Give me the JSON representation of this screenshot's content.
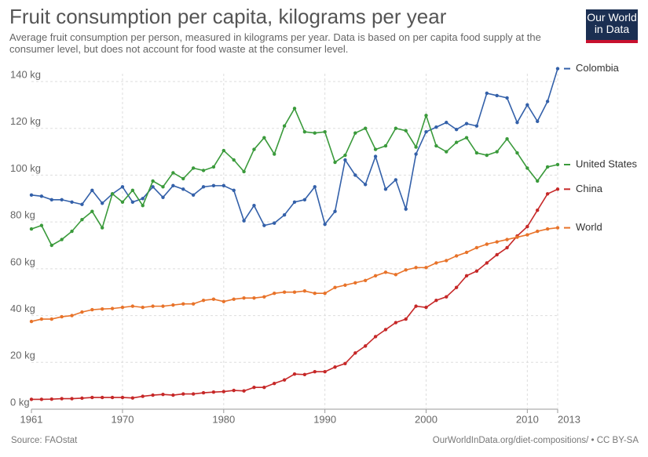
{
  "logo": "Our World in Data",
  "chart_data": {
    "type": "line",
    "title": "Fruit consumption per capita, kilograms per year",
    "subtitle": "Average fruit consumption per person, measured in kilograms per year. Data is based on per capita food supply at the consumer level, but does not account for food waste at the consumer level.",
    "source": "Source: FAOstat",
    "credit": "OurWorldInData.org/diet-compositions/ • CC BY-SA",
    "x": [
      1961,
      1962,
      1963,
      1964,
      1965,
      1966,
      1967,
      1968,
      1969,
      1970,
      1971,
      1972,
      1973,
      1974,
      1975,
      1976,
      1977,
      1978,
      1979,
      1980,
      1981,
      1982,
      1983,
      1984,
      1985,
      1986,
      1987,
      1988,
      1989,
      1990,
      1991,
      1992,
      1993,
      1994,
      1995,
      1996,
      1997,
      1998,
      1999,
      2000,
      2001,
      2002,
      2003,
      2004,
      2005,
      2006,
      2007,
      2008,
      2009,
      2010,
      2011,
      2012,
      2013
    ],
    "xlim": [
      1961,
      2013
    ],
    "xticks": [
      1961,
      1970,
      1980,
      1990,
      2000,
      2010,
      2013
    ],
    "ylim": [
      0,
      140
    ],
    "yticks": [
      {
        "value": 0,
        "label": "0 kg"
      },
      {
        "value": 20,
        "label": "20 kg"
      },
      {
        "value": 40,
        "label": "40 kg"
      },
      {
        "value": 60,
        "label": "60 kg"
      },
      {
        "value": 80,
        "label": "80 kg"
      },
      {
        "value": 100,
        "label": "100 kg"
      },
      {
        "value": 120,
        "label": "120 kg"
      },
      {
        "value": 140,
        "label": "140 kg"
      }
    ],
    "grid": true,
    "series": [
      {
        "name": "Colombia",
        "color": "#3360a9",
        "values": [
          91.5,
          91,
          89.5,
          89.5,
          88.5,
          87.5,
          93.5,
          88,
          92,
          95,
          88.5,
          90,
          95,
          90.5,
          95.5,
          94,
          91.5,
          95,
          95.5,
          95.5,
          93.5,
          80.5,
          87,
          78.5,
          79.5,
          83,
          88.5,
          89.5,
          95,
          79,
          84.5,
          106.5,
          100,
          96,
          108,
          94,
          98,
          85.5,
          109,
          118.5,
          120.5,
          122.5,
          119.5,
          122,
          121,
          135,
          134,
          133,
          122.5,
          130,
          123,
          131.5,
          145.5
        ]
      },
      {
        "name": "United States",
        "color": "#3a9a3b",
        "values": [
          77,
          78.5,
          70,
          72.5,
          76,
          81,
          84.5,
          77.5,
          92,
          88.5,
          93.5,
          87,
          97.5,
          95,
          101,
          98.5,
          103,
          102,
          103.5,
          110.5,
          106.5,
          101.5,
          111,
          116,
          109,
          121,
          128.5,
          118.5,
          118,
          118.5,
          105.5,
          108.5,
          118,
          120,
          111,
          112.5,
          120,
          119,
          112,
          125.5,
          112.5,
          110,
          114,
          116,
          109.5,
          108.5,
          110,
          115.5,
          109.5,
          103,
          97.5,
          103.5,
          104.5
        ]
      },
      {
        "name": "China",
        "color": "#c62828",
        "values": [
          4.2,
          4.2,
          4.3,
          4.5,
          4.5,
          4.7,
          5,
          5,
          5,
          5,
          4.8,
          5.5,
          6,
          6.3,
          6,
          6.5,
          6.5,
          7,
          7.3,
          7.5,
          8,
          7.8,
          9.3,
          9.3,
          11,
          12.5,
          15,
          14.8,
          16,
          16,
          18,
          19.5,
          24,
          27,
          31,
          34,
          37,
          38.5,
          44,
          43.5,
          46.5,
          48,
          52,
          57,
          59,
          62.5,
          66,
          69,
          74,
          78,
          85,
          92,
          94
        ]
      },
      {
        "name": "World",
        "color": "#e8732a",
        "values": [
          37.5,
          38.5,
          38.5,
          39.5,
          40,
          41.5,
          42.5,
          42.8,
          43,
          43.5,
          44,
          43.5,
          44,
          44,
          44.5,
          45,
          45,
          46.5,
          47,
          46,
          47,
          47.5,
          47.5,
          48,
          49.5,
          50,
          50,
          50.5,
          49.5,
          49.5,
          52,
          53,
          54,
          55,
          57,
          58.5,
          57.5,
          59.5,
          60.5,
          60.5,
          62.5,
          63.5,
          65.5,
          67,
          69,
          70.5,
          71.5,
          72.5,
          73.5,
          74.5,
          76,
          77,
          77.5
        ]
      }
    ]
  }
}
